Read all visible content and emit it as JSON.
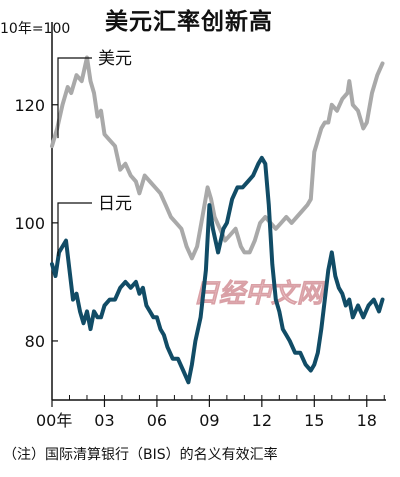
{
  "chart_data": {
    "type": "line",
    "title": "美元汇率创新高",
    "unit_label": "10年=100",
    "note": "（注）国际清算银行（BIS）的名义有效汇率",
    "watermark": "日经中文网",
    "x_tick_labels": [
      "00年",
      "03",
      "06",
      "09",
      "12",
      "15",
      "18"
    ],
    "x_ticks": [
      2000,
      2003,
      2006,
      2009,
      2012,
      2015,
      2018
    ],
    "y_ticks": [
      80,
      100,
      120
    ],
    "xlim": [
      2000,
      2019.1
    ],
    "ylim": [
      70,
      133
    ],
    "grid": false,
    "series": [
      {
        "name": "美元",
        "color": "#a9a9a9",
        "x": [
          2000.0,
          2000.3,
          2000.6,
          2000.9,
          2001.1,
          2001.4,
          2001.7,
          2002.0,
          2002.2,
          2002.4,
          2002.6,
          2002.8,
          2003.0,
          2003.3,
          2003.6,
          2003.9,
          2004.2,
          2004.5,
          2004.8,
          2005.0,
          2005.3,
          2005.6,
          2005.9,
          2006.2,
          2006.5,
          2006.8,
          2007.1,
          2007.4,
          2007.7,
          2008.0,
          2008.3,
          2008.6,
          2008.9,
          2009.1,
          2009.3,
          2009.6,
          2009.9,
          2010.2,
          2010.5,
          2010.8,
          2011.0,
          2011.3,
          2011.6,
          2011.9,
          2012.2,
          2012.5,
          2012.8,
          2013.1,
          2013.4,
          2013.7,
          2014.0,
          2014.3,
          2014.6,
          2014.8,
          2015.0,
          2015.2,
          2015.4,
          2015.6,
          2015.8,
          2016.0,
          2016.3,
          2016.6,
          2016.9,
          2017.0,
          2017.2,
          2017.5,
          2017.8,
          2018.0,
          2018.3,
          2018.6,
          2018.9
        ],
        "y": [
          113,
          116,
          120,
          123,
          122,
          125,
          124,
          128,
          124,
          122,
          118,
          119,
          115,
          114,
          113,
          109,
          110,
          108,
          107,
          105,
          108,
          107,
          106,
          105,
          103,
          101,
          100,
          99,
          96,
          94,
          96,
          101,
          106,
          104,
          101,
          99,
          97,
          98,
          99,
          96,
          95,
          95,
          97,
          100,
          101,
          100,
          99,
          100,
          101,
          100,
          101,
          102,
          103,
          104,
          112,
          114,
          116,
          117,
          117,
          120,
          119,
          121,
          122,
          124,
          120,
          119,
          116,
          117,
          122,
          125,
          127
        ]
      },
      {
        "name": "日元",
        "color": "#114c66",
        "x": [
          2000.0,
          2000.2,
          2000.4,
          2000.6,
          2000.8,
          2001.0,
          2001.2,
          2001.4,
          2001.6,
          2001.8,
          2002.0,
          2002.2,
          2002.4,
          2002.6,
          2002.8,
          2003.0,
          2003.3,
          2003.6,
          2003.9,
          2004.2,
          2004.5,
          2004.8,
          2005.0,
          2005.2,
          2005.4,
          2005.6,
          2005.8,
          2006.0,
          2006.2,
          2006.4,
          2006.6,
          2006.9,
          2007.2,
          2007.5,
          2007.8,
          2008.0,
          2008.2,
          2008.5,
          2008.8,
          2009.0,
          2009.2,
          2009.5,
          2009.8,
          2010.0,
          2010.3,
          2010.6,
          2010.9,
          2011.2,
          2011.5,
          2011.8,
          2012.0,
          2012.2,
          2012.4,
          2012.6,
          2012.8,
          2013.0,
          2013.2,
          2013.4,
          2013.6,
          2013.9,
          2014.2,
          2014.5,
          2014.8,
          2015.0,
          2015.2,
          2015.4,
          2015.6,
          2015.8,
          2016.0,
          2016.2,
          2016.4,
          2016.6,
          2016.8,
          2017.0,
          2017.2,
          2017.5,
          2017.8,
          2018.1,
          2018.4,
          2018.7,
          2018.9
        ],
        "y": [
          93,
          91,
          95,
          96,
          97,
          92,
          87,
          88,
          85,
          83,
          85,
          82,
          85,
          84,
          84,
          86,
          87,
          87,
          89,
          90,
          89,
          90,
          88,
          89,
          86,
          85,
          84,
          84,
          82,
          81,
          79,
          77,
          77,
          75,
          73,
          76,
          80,
          84,
          92,
          103,
          99,
          95,
          99,
          100,
          104,
          106,
          106,
          107,
          108,
          110,
          111,
          110,
          103,
          93,
          87,
          85,
          82,
          81,
          80,
          78,
          78,
          76,
          75,
          76,
          78,
          82,
          87,
          92,
          95,
          91,
          89,
          88,
          86,
          87,
          84,
          86,
          84,
          86,
          87,
          85,
          87
        ]
      }
    ]
  }
}
